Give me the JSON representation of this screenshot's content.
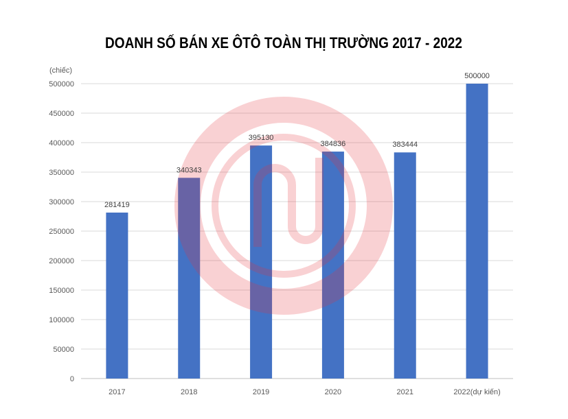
{
  "chart_data": {
    "type": "bar",
    "title": "DOANH SỐ BÁN XE ÔTÔ TOÀN THỊ TRƯỜNG 2017 - 2022",
    "ylabel": "(chiếc)",
    "xlabel": "",
    "categories": [
      "2017",
      "2018",
      "2019",
      "2020",
      "2021",
      "2022(dự kiến)"
    ],
    "values": [
      281419,
      340343,
      395130,
      384836,
      383444,
      500000
    ],
    "data_labels": [
      "281419",
      "340343",
      "395130",
      "384836",
      "383444",
      "500000"
    ],
    "ylim": [
      0,
      500000
    ],
    "yticks": [
      0,
      50000,
      100000,
      150000,
      200000,
      250000,
      300000,
      350000,
      400000,
      450000,
      500000
    ],
    "grid": true,
    "legend": "none",
    "colors": {
      "bar": "#4472C4",
      "watermark": "#E8323C"
    }
  }
}
